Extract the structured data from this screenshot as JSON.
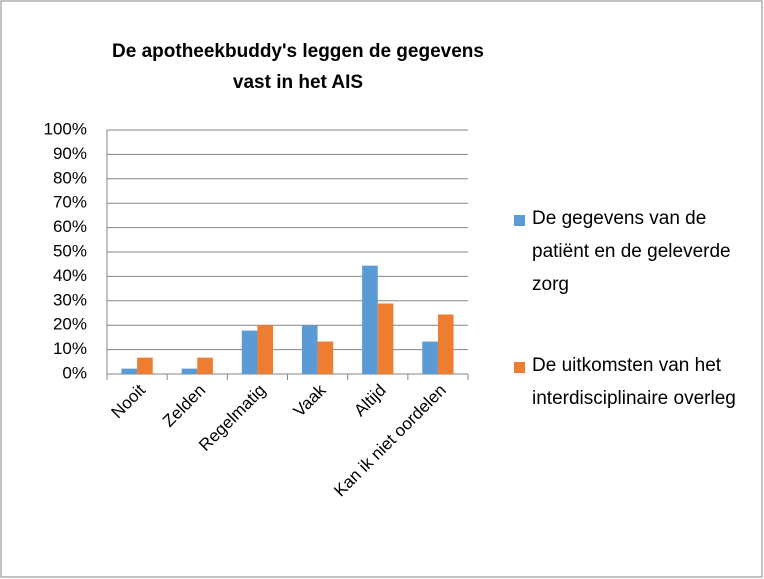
{
  "chart_data": {
    "type": "bar",
    "title": "De apotheekbuddy's leggen de gegevens vast in het AIS",
    "categories": [
      "Nooit",
      "Zelden",
      "Regelmatig",
      "Vaak",
      "Altijd",
      "Kan ik niet oordelen"
    ],
    "series": [
      {
        "name": "De gegevens van de patiënt en de geleverde zorg",
        "color": "#5b9bd5",
        "values": [
          2.2,
          2.2,
          17.8,
          20,
          44.4,
          13.3
        ]
      },
      {
        "name": "De uitkomsten van het interdisciplinaire overleg",
        "color": "#ed7d31",
        "values": [
          6.7,
          6.7,
          20,
          13.3,
          28.9,
          24.4
        ]
      }
    ],
    "ylim": [
      0,
      100
    ],
    "yticks": [
      {
        "value": 0,
        "label": "0%"
      },
      {
        "value": 10,
        "label": "10%"
      },
      {
        "value": 20,
        "label": "20%"
      },
      {
        "value": 30,
        "label": "30%"
      },
      {
        "value": 40,
        "label": "40%"
      },
      {
        "value": 50,
        "label": "50%"
      },
      {
        "value": 60,
        "label": "60%"
      },
      {
        "value": 70,
        "label": "70%"
      },
      {
        "value": 80,
        "label": "80%"
      },
      {
        "value": 90,
        "label": "90%"
      },
      {
        "value": 100,
        "label": "100%"
      }
    ],
    "grid": true,
    "legend": "right"
  }
}
